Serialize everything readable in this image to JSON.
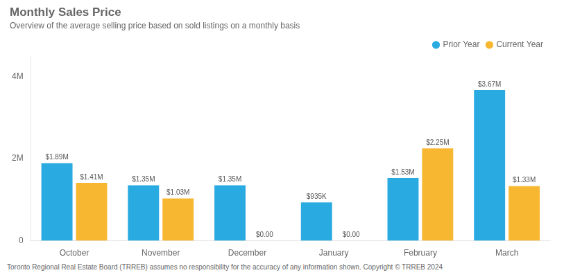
{
  "chart_data": {
    "type": "bar",
    "title": "Monthly Sales Price",
    "subtitle": "Overview of the average selling price based on sold listings on a monthly basis",
    "annotations": [
      "Toronto Regional Real Estate Board (TRREB) assumes no responsibility for the accuracy of any information shown. Copyright © TRREB 2024"
    ],
    "categories": [
      "October",
      "November",
      "December",
      "January",
      "February",
      "March"
    ],
    "series": [
      {
        "name": "Prior Year",
        "color": "#29ABE2",
        "values": [
          1890000,
          1350000,
          1350000,
          935000,
          1530000,
          3670000
        ],
        "value_labels": [
          "$1.89M",
          "$1.35M",
          "$1.35M",
          "$935K",
          "$1.53M",
          "$3.67M"
        ]
      },
      {
        "name": "Current Year",
        "color": "#F7B731",
        "values": [
          1410000,
          1030000,
          0,
          0,
          2250000,
          1330000
        ],
        "value_labels": [
          "$1.41M",
          "$1.03M",
          "$0.00",
          "$0.00",
          "$2.25M",
          "$1.33M"
        ]
      }
    ],
    "ylim": [
      0,
      4500000
    ],
    "yticks": [
      0,
      {
        "value": 2000000,
        "label": "2M"
      },
      {
        "value": 4000000,
        "label": "4M"
      }
    ],
    "grid": false,
    "legend": "upper right",
    "data_labels": true
  }
}
